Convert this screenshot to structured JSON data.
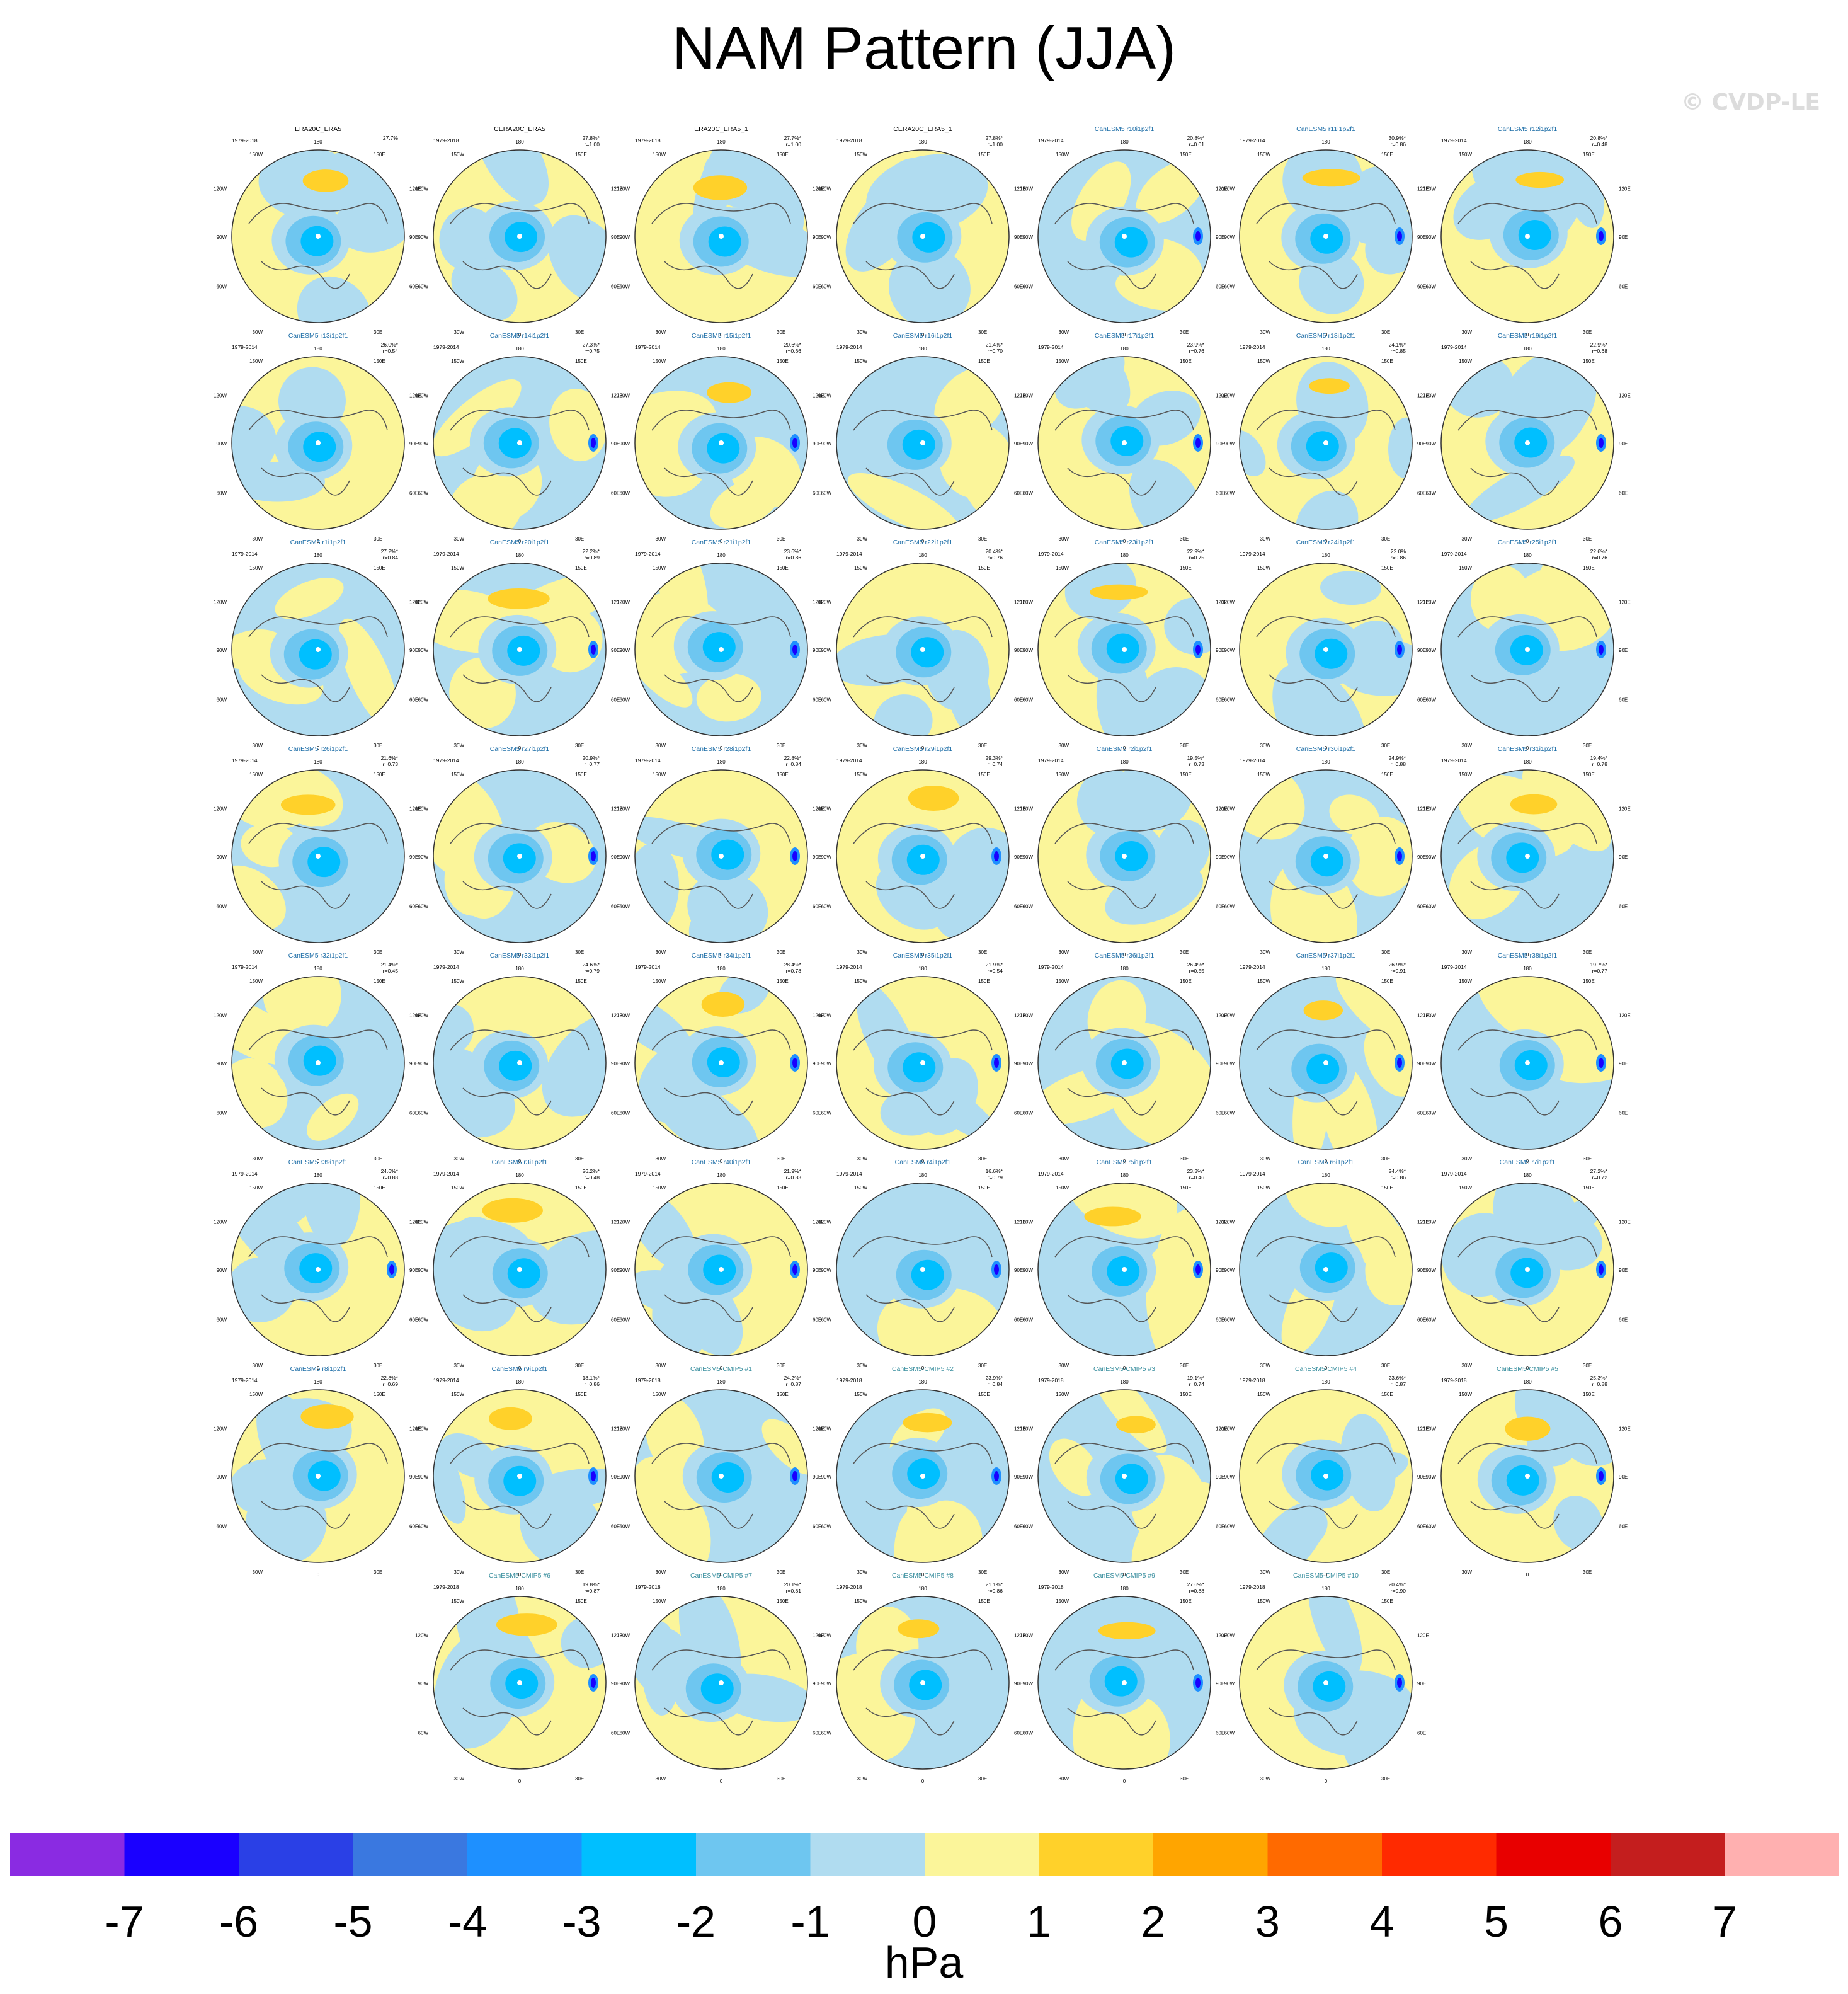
{
  "title": "NAM Pattern (JJA)",
  "watermark": "© CVDP-LE",
  "colorbar": {
    "units": "hPa",
    "ticks": [
      "-7",
      "-6",
      "-5",
      "-4",
      "-3",
      "-2",
      "-1",
      "0",
      "1",
      "2",
      "3",
      "4",
      "5",
      "6",
      "7"
    ],
    "colors": [
      "#8a2be2",
      "#1a00ff",
      "#2a40e6",
      "#3a78e0",
      "#1e90ff",
      "#00bfff",
      "#6ec6f0",
      "#b0dcf0",
      "#fbf59a",
      "#ffd12a",
      "#ffa500",
      "#ff6a00",
      "#ff2a00",
      "#e80000",
      "#c41e1e",
      "#ffb0b0"
    ]
  },
  "chart_data": {
    "type": "heatmap",
    "title": "NAM Pattern (JJA)",
    "units": "hPa",
    "projection": "polar stereographic, Northern Hemisphere",
    "lon_labels": [
      "180",
      "150W",
      "150E",
      "120W",
      "120E",
      "90W",
      "90E",
      "60W",
      "60E",
      "30W",
      "30E",
      "0"
    ],
    "panels": [
      {
        "name": "ERA20C_ERA5",
        "period": "1979-2018",
        "pct": "27.7%",
        "r": "",
        "ref": true
      },
      {
        "name": "CERA20C_ERA5",
        "period": "1979-2018",
        "pct": "27.8%*",
        "r": "r=1.00",
        "ref": true
      },
      {
        "name": "ERA20C_ERA5_1",
        "period": "1979-2018",
        "pct": "27.7%*",
        "r": "r=1.00",
        "ref": true
      },
      {
        "name": "CERA20C_ERA5_1",
        "period": "1979-2018",
        "pct": "27.8%*",
        "r": "r=1.00",
        "ref": true
      },
      {
        "name": "CanESM5 r10i1p2f1",
        "period": "1979-2014",
        "pct": "20.8%*",
        "r": "r=0.01",
        "ref": false
      },
      {
        "name": "CanESM5 r11i1p2f1",
        "period": "1979-2014",
        "pct": "30.9%*",
        "r": "r=0.86",
        "ref": false
      },
      {
        "name": "CanESM5 r12i1p2f1",
        "period": "1979-2014",
        "pct": "20.8%*",
        "r": "r=0.48",
        "ref": false
      },
      {
        "name": "CanESM5 r13i1p2f1",
        "period": "1979-2014",
        "pct": "26.0%*",
        "r": "r=0.54",
        "ref": false
      },
      {
        "name": "CanESM5 r14i1p2f1",
        "period": "1979-2014",
        "pct": "27.3%*",
        "r": "r=0.75",
        "ref": false
      },
      {
        "name": "CanESM5 r15i1p2f1",
        "period": "1979-2014",
        "pct": "20.6%*",
        "r": "r=0.66",
        "ref": false
      },
      {
        "name": "CanESM5 r16i1p2f1",
        "period": "1979-2014",
        "pct": "21.4%*",
        "r": "r=0.70",
        "ref": false
      },
      {
        "name": "CanESM5 r17i1p2f1",
        "period": "1979-2014",
        "pct": "23.9%*",
        "r": "r=0.76",
        "ref": false
      },
      {
        "name": "CanESM5 r18i1p2f1",
        "period": "1979-2014",
        "pct": "24.1%*",
        "r": "r=0.85",
        "ref": false
      },
      {
        "name": "CanESM5 r19i1p2f1",
        "period": "1979-2014",
        "pct": "22.9%*",
        "r": "r=0.68",
        "ref": false
      },
      {
        "name": "CanESM5 r1i1p2f1",
        "period": "1979-2014",
        "pct": "27.2%*",
        "r": "r=0.84",
        "ref": false
      },
      {
        "name": "CanESM5 r20i1p2f1",
        "period": "1979-2014",
        "pct": "22.2%*",
        "r": "r=0.89",
        "ref": false
      },
      {
        "name": "CanESM5 r21i1p2f1",
        "period": "1979-2014",
        "pct": "23.6%*",
        "r": "r=0.86",
        "ref": false
      },
      {
        "name": "CanESM5 r22i1p2f1",
        "period": "1979-2014",
        "pct": "20.4%*",
        "r": "r=0.76",
        "ref": false
      },
      {
        "name": "CanESM5 r23i1p2f1",
        "period": "1979-2014",
        "pct": "22.9%*",
        "r": "r=0.75",
        "ref": false
      },
      {
        "name": "CanESM5 r24i1p2f1",
        "period": "1979-2014",
        "pct": "22.0%",
        "r": "r=0.86",
        "ref": false
      },
      {
        "name": "CanESM5 r25i1p2f1",
        "period": "1979-2014",
        "pct": "22.6%*",
        "r": "r=0.76",
        "ref": false
      },
      {
        "name": "CanESM5 r26i1p2f1",
        "period": "1979-2014",
        "pct": "21.6%*",
        "r": "r=0.73",
        "ref": false
      },
      {
        "name": "CanESM5 r27i1p2f1",
        "period": "1979-2014",
        "pct": "20.9%*",
        "r": "r=0.77",
        "ref": false
      },
      {
        "name": "CanESM5 r28i1p2f1",
        "period": "1979-2014",
        "pct": "22.8%*",
        "r": "r=0.84",
        "ref": false
      },
      {
        "name": "CanESM5 r29i1p2f1",
        "period": "1979-2014",
        "pct": "29.3%*",
        "r": "r=0.74",
        "ref": false
      },
      {
        "name": "CanESM5 r2i1p2f1",
        "period": "1979-2014",
        "pct": "19.5%*",
        "r": "r=0.73",
        "ref": false
      },
      {
        "name": "CanESM5 r30i1p2f1",
        "period": "1979-2014",
        "pct": "24.9%*",
        "r": "r=0.88",
        "ref": false
      },
      {
        "name": "CanESM5 r31i1p2f1",
        "period": "1979-2014",
        "pct": "19.4%*",
        "r": "r=0.78",
        "ref": false
      },
      {
        "name": "CanESM5 r32i1p2f1",
        "period": "1979-2014",
        "pct": "21.4%*",
        "r": "r=0.45",
        "ref": false
      },
      {
        "name": "CanESM5 r33i1p2f1",
        "period": "1979-2014",
        "pct": "24.6%*",
        "r": "r=0.79",
        "ref": false
      },
      {
        "name": "CanESM5 r34i1p2f1",
        "period": "1979-2014",
        "pct": "28.4%*",
        "r": "r=0.78",
        "ref": false
      },
      {
        "name": "CanESM5 r35i1p2f1",
        "period": "1979-2014",
        "pct": "21.9%*",
        "r": "r=0.54",
        "ref": false
      },
      {
        "name": "CanESM5 r36i1p2f1",
        "period": "1979-2014",
        "pct": "26.4%*",
        "r": "r=0.55",
        "ref": false
      },
      {
        "name": "CanESM5 r37i1p2f1",
        "period": "1979-2014",
        "pct": "26.9%*",
        "r": "r=0.91",
        "ref": false
      },
      {
        "name": "CanESM5 r38i1p2f1",
        "period": "1979-2014",
        "pct": "19.7%*",
        "r": "r=0.77",
        "ref": false
      },
      {
        "name": "CanESM5 r39i1p2f1",
        "period": "1979-2014",
        "pct": "24.6%*",
        "r": "r=0.88",
        "ref": false
      },
      {
        "name": "CanESM5 r3i1p2f1",
        "period": "1979-2014",
        "pct": "26.2%*",
        "r": "r=0.48",
        "ref": false
      },
      {
        "name": "CanESM5 r40i1p2f1",
        "period": "1979-2014",
        "pct": "21.9%*",
        "r": "r=0.83",
        "ref": false
      },
      {
        "name": "CanESM5 r4i1p2f1",
        "period": "1979-2014",
        "pct": "16.6%*",
        "r": "r=0.79",
        "ref": false
      },
      {
        "name": "CanESM5 r5i1p2f1",
        "period": "1979-2014",
        "pct": "23.3%*",
        "r": "r=0.46",
        "ref": false
      },
      {
        "name": "CanESM5 r6i1p2f1",
        "period": "1979-2014",
        "pct": "24.4%*",
        "r": "r=0.86",
        "ref": false
      },
      {
        "name": "CanESM5 r7i1p2f1",
        "period": "1979-2014",
        "pct": "27.2%*",
        "r": "r=0.72",
        "ref": false
      },
      {
        "name": "CanESM5 r8i1p2f1",
        "period": "1979-2014",
        "pct": "22.8%*",
        "r": "r=0.69",
        "ref": false
      },
      {
        "name": "CanESM5 r9i1p2f1",
        "period": "1979-2014",
        "pct": "18.1%*",
        "r": "r=0.86",
        "ref": false
      },
      {
        "name": "CanESM5-CMIP5 #1",
        "period": "1979-2018",
        "pct": "24.2%*",
        "r": "r=0.87",
        "ref": false
      },
      {
        "name": "CanESM5-CMIP5 #2",
        "period": "1979-2018",
        "pct": "23.9%*",
        "r": "r=0.84",
        "ref": false
      },
      {
        "name": "CanESM5-CMIP5 #3",
        "period": "1979-2018",
        "pct": "19.1%*",
        "r": "r=0.74",
        "ref": false
      },
      {
        "name": "CanESM5-CMIP5 #4",
        "period": "1979-2018",
        "pct": "23.6%*",
        "r": "r=0.87",
        "ref": false
      },
      {
        "name": "CanESM5-CMIP5 #5",
        "period": "1979-2018",
        "pct": "25.3%*",
        "r": "r=0.88",
        "ref": false
      },
      {
        "name": "CanESM5-CMIP5 #6",
        "period": "1979-2018",
        "pct": "19.8%*",
        "r": "r=0.87",
        "ref": false
      },
      {
        "name": "CanESM5-CMIP5 #7",
        "period": "1979-2018",
        "pct": "20.1%*",
        "r": "r=0.81",
        "ref": false
      },
      {
        "name": "CanESM5-CMIP5 #8",
        "period": "1979-2018",
        "pct": "21.1%*",
        "r": "r=0.86",
        "ref": false
      },
      {
        "name": "CanESM5-CMIP5 #9",
        "period": "1979-2018",
        "pct": "27.6%*",
        "r": "r=0.88",
        "ref": false
      },
      {
        "name": "CanESM5-CMIP5 #10",
        "period": "1979-2018",
        "pct": "20.4%*",
        "r": "r=0.90",
        "ref": false
      }
    ]
  }
}
